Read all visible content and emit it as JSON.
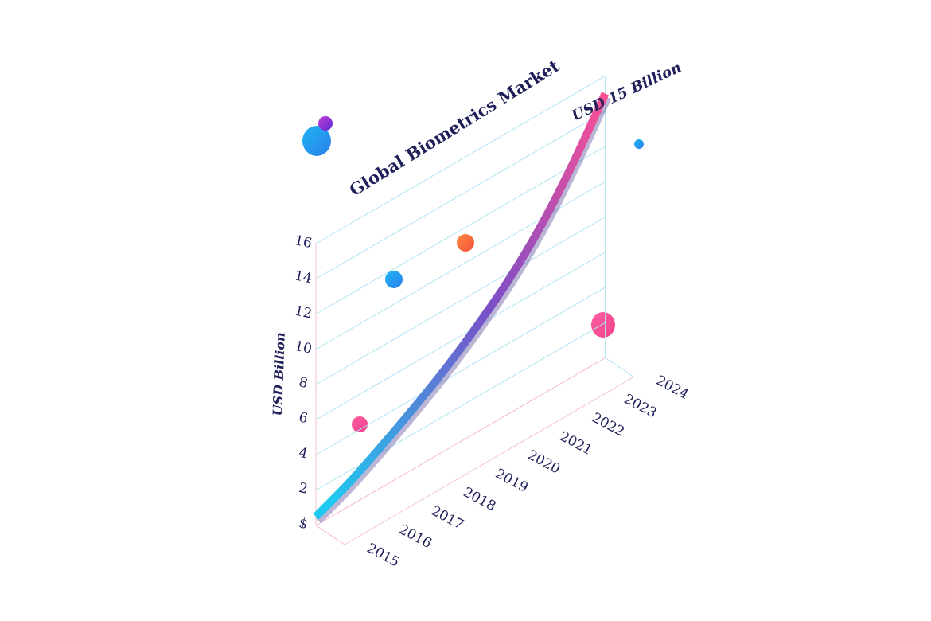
{
  "chart_data": {
    "type": "line",
    "title": "Global Biometrics Market",
    "ylabel": "USD Billion",
    "xlabel": "",
    "callout": "USD 15 Billion",
    "y_ticks": [
      "$",
      "2",
      "4",
      "6",
      "8",
      "10",
      "12",
      "14",
      "16"
    ],
    "ylim": [
      0,
      16
    ],
    "categories": [
      "2015",
      "2016",
      "2017",
      "2018",
      "2019",
      "2020",
      "2021",
      "2022",
      "2023",
      "2024"
    ],
    "series": [
      {
        "values": [
          0.5,
          1.3,
          2.3,
          3.4,
          4.6,
          6.0,
          7.6,
          9.6,
          12.1,
          15.0
        ]
      }
    ],
    "grid": true,
    "colors": {
      "line_start": "#1fc8ef",
      "line_mid": "#7b4fc7",
      "line_end": "#ff4f93",
      "text": "#1f1f5a",
      "grid_blue": "#aee3f3",
      "grid_pink": "#f6b6cf"
    }
  }
}
